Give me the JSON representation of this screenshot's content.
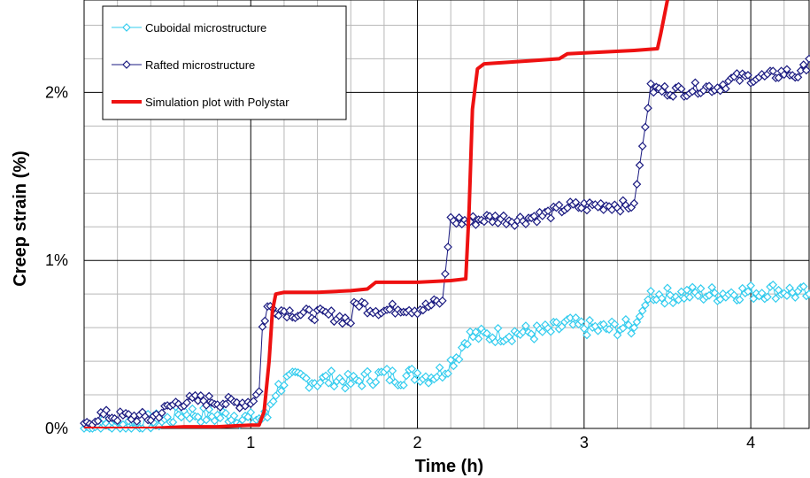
{
  "chart_data": {
    "type": "line",
    "title": "",
    "xlabel": "Time (h)",
    "ylabel": "Creep strain (%)",
    "xlim": [
      0,
      4.35
    ],
    "ylim": [
      0,
      2.55
    ],
    "x_ticks": [
      1,
      2,
      3,
      4
    ],
    "x_tick_labels": [
      "1",
      "2",
      "3",
      "4"
    ],
    "y_ticks": [
      0,
      1,
      2
    ],
    "y_tick_labels": [
      "0%",
      "1%",
      "2%"
    ],
    "x_minor_step": 0.2,
    "y_minor_step": 0.2,
    "grid": true,
    "legend_position": "top-left",
    "series": [
      {
        "name": "Cuboidal microstructure",
        "color": "#33ccee",
        "marker": "diamond-open",
        "x": [
          0,
          0.05,
          0.1,
          0.2,
          0.3,
          0.4,
          0.5,
          0.55,
          0.6,
          0.7,
          0.8,
          0.9,
          0.95,
          1.0,
          1.05,
          1.1,
          1.12,
          1.15,
          1.2,
          1.3,
          1.4,
          1.5,
          1.6,
          1.7,
          1.8,
          1.9,
          2.0,
          2.05,
          2.1,
          2.15,
          2.25,
          2.3,
          2.4,
          2.5,
          2.6,
          2.7,
          2.8,
          2.9,
          3.0,
          3.1,
          3.2,
          3.25,
          3.3,
          3.4,
          3.5,
          3.6,
          3.7,
          3.8,
          3.9,
          4.0,
          4.1,
          4.2,
          4.3,
          4.35
        ],
        "values": [
          0.0,
          0.01,
          0.02,
          0.02,
          0.03,
          0.04,
          0.05,
          0.08,
          0.1,
          0.08,
          0.07,
          0.08,
          0.06,
          0.05,
          0.06,
          0.07,
          0.15,
          0.22,
          0.28,
          0.3,
          0.28,
          0.3,
          0.27,
          0.3,
          0.32,
          0.3,
          0.33,
          0.31,
          0.32,
          0.34,
          0.45,
          0.55,
          0.55,
          0.56,
          0.57,
          0.57,
          0.58,
          0.62,
          0.6,
          0.59,
          0.6,
          0.6,
          0.6,
          0.8,
          0.79,
          0.8,
          0.8,
          0.8,
          0.81,
          0.81,
          0.82,
          0.82,
          0.8,
          0.8
        ]
      },
      {
        "name": "Rafted microstructure",
        "color": "#1a1a80",
        "marker": "diamond-open",
        "x": [
          0,
          0.05,
          0.1,
          0.2,
          0.3,
          0.4,
          0.5,
          0.55,
          0.6,
          0.7,
          0.8,
          0.9,
          1.0,
          1.05,
          1.07,
          1.1,
          1.2,
          1.3,
          1.4,
          1.5,
          1.6,
          1.62,
          1.65,
          1.7,
          1.8,
          1.9,
          2.0,
          2.05,
          2.1,
          2.15,
          2.2,
          2.3,
          2.4,
          2.5,
          2.6,
          2.7,
          2.8,
          2.9,
          3.0,
          3.1,
          3.2,
          3.25,
          3.3,
          3.4,
          3.5,
          3.6,
          3.7,
          3.8,
          3.9,
          4.0,
          4.1,
          4.2,
          4.3,
          4.35
        ],
        "values": [
          0.0,
          0.05,
          0.08,
          0.07,
          0.07,
          0.06,
          0.12,
          0.15,
          0.16,
          0.17,
          0.16,
          0.15,
          0.16,
          0.22,
          0.6,
          0.72,
          0.7,
          0.68,
          0.68,
          0.67,
          0.64,
          0.72,
          0.75,
          0.72,
          0.7,
          0.72,
          0.71,
          0.72,
          0.74,
          0.76,
          1.24,
          1.23,
          1.25,
          1.25,
          1.24,
          1.26,
          1.28,
          1.32,
          1.32,
          1.33,
          1.33,
          1.32,
          1.34,
          2.02,
          2.01,
          2.01,
          2.03,
          2.03,
          2.08,
          2.09,
          2.09,
          2.12,
          2.1,
          2.2
        ]
      },
      {
        "name": "Simulation plot with Polystar",
        "color": "#ee1111",
        "marker": "none",
        "x": [
          0,
          0.4,
          0.6,
          0.8,
          1.0,
          1.05,
          1.08,
          1.11,
          1.13,
          1.15,
          1.2,
          1.4,
          1.6,
          1.7,
          1.75,
          2.0,
          2.2,
          2.29,
          2.31,
          2.33,
          2.36,
          2.4,
          2.7,
          2.85,
          2.9,
          3.1,
          3.3,
          3.44,
          3.46,
          3.48,
          3.5
        ],
        "values": [
          0.0,
          0.0,
          0.01,
          0.01,
          0.02,
          0.02,
          0.1,
          0.4,
          0.7,
          0.8,
          0.81,
          0.81,
          0.82,
          0.83,
          0.87,
          0.87,
          0.88,
          0.89,
          1.3,
          1.9,
          2.14,
          2.17,
          2.19,
          2.2,
          2.23,
          2.24,
          2.25,
          2.26,
          2.35,
          2.45,
          2.55
        ]
      }
    ]
  }
}
